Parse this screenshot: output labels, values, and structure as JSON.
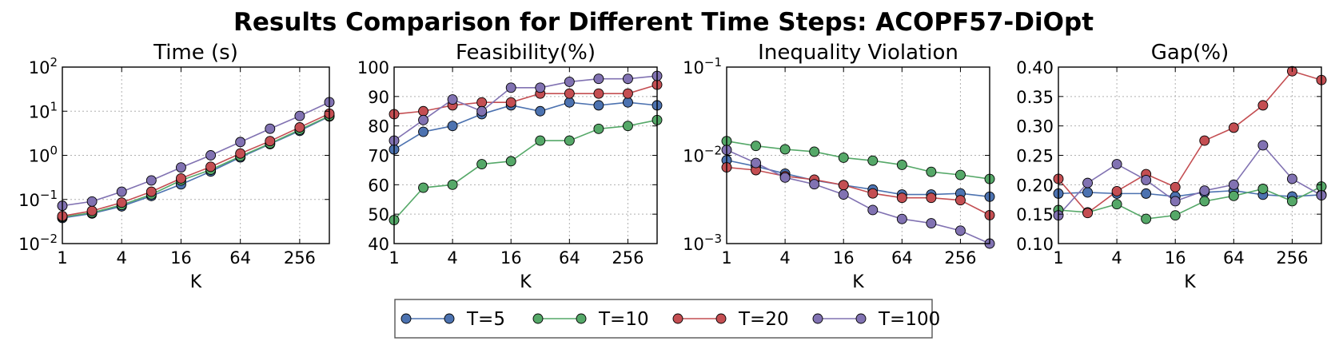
{
  "chart_data": {
    "type": "line",
    "title": "Results Comparison for Different Time Steps: ACOPF57-DiOpt",
    "x": [
      1,
      2,
      4,
      8,
      16,
      32,
      64,
      128,
      256,
      512
    ],
    "xlabel": "K",
    "xticks": [
      1,
      4,
      16,
      64,
      256
    ],
    "xtick_labels": [
      "1",
      "4",
      "16",
      "64",
      "256"
    ],
    "series_names": [
      "T=5",
      "T=10",
      "T=20",
      "T=100"
    ],
    "colors": [
      "#4c72b0",
      "#55a868",
      "#c44e52",
      "#8172b2"
    ],
    "legend_position": "bottom-center",
    "panels": [
      {
        "title": "Time (s)",
        "yscale": "log",
        "ylim": [
          0.01,
          100
        ],
        "yticks": [
          0.01,
          0.1,
          1,
          10,
          100
        ],
        "ytick_labels": [
          {
            "base": "10",
            "exp": "−2"
          },
          {
            "base": "10",
            "exp": "−1"
          },
          {
            "base": "10",
            "exp": "0"
          },
          {
            "base": "10",
            "exp": "1"
          },
          {
            "base": "10",
            "exp": "2"
          }
        ],
        "series": [
          {
            "name": "T=5",
            "values": [
              0.038,
              0.048,
              0.07,
              0.12,
              0.22,
              0.43,
              0.9,
              1.8,
              3.6,
              7.6
            ]
          },
          {
            "name": "T=10",
            "values": [
              0.04,
              0.05,
              0.075,
              0.13,
              0.27,
              0.47,
              0.95,
              1.85,
              3.8,
              7.8
            ]
          },
          {
            "name": "T=20",
            "values": [
              0.042,
              0.055,
              0.085,
              0.15,
              0.3,
              0.55,
              1.1,
              2.1,
              4.3,
              8.8
            ]
          },
          {
            "name": "T=100",
            "values": [
              0.072,
              0.09,
              0.15,
              0.27,
              0.53,
              1.0,
              2.0,
              4.0,
              7.8,
              16
            ]
          }
        ]
      },
      {
        "title": "Feasibility(%)",
        "yscale": "linear",
        "ylim": [
          40,
          100
        ],
        "yticks": [
          40,
          50,
          60,
          70,
          80,
          90,
          100
        ],
        "ytick_labels": [
          "40",
          "50",
          "60",
          "70",
          "80",
          "90",
          "100"
        ],
        "series": [
          {
            "name": "T=5",
            "values": [
              72,
              78,
              80,
              84,
              87,
              85,
              88,
              87,
              88,
              87
            ]
          },
          {
            "name": "T=10",
            "values": [
              48,
              59,
              60,
              67,
              68,
              75,
              75,
              79,
              80,
              82
            ]
          },
          {
            "name": "T=20",
            "values": [
              84,
              85,
              87,
              88,
              88,
              91,
              91,
              91,
              91,
              94
            ]
          },
          {
            "name": "T=100",
            "values": [
              75,
              82,
              89,
              85,
              93,
              93,
              95,
              96,
              96,
              97
            ]
          }
        ]
      },
      {
        "title": "Inequality Violation",
        "yscale": "log",
        "ylim": [
          0.001,
          0.1
        ],
        "yticks": [
          0.001,
          0.01,
          0.1
        ],
        "ytick_labels": [
          {
            "base": "10",
            "exp": "−3"
          },
          {
            "base": "10",
            "exp": "−2"
          },
          {
            "base": "10",
            "exp": "−1"
          }
        ],
        "series": [
          {
            "name": "T=5",
            "values": [
              0.0088,
              0.0075,
              0.0062,
              0.0052,
              0.0046,
              0.0041,
              0.0036,
              0.0036,
              0.0037,
              0.0034
            ]
          },
          {
            "name": "T=10",
            "values": [
              0.0145,
              0.0128,
              0.0117,
              0.011,
              0.0094,
              0.0087,
              0.0078,
              0.0065,
              0.006,
              0.0054
            ]
          },
          {
            "name": "T=20",
            "values": [
              0.0073,
              0.0068,
              0.0058,
              0.0053,
              0.0046,
              0.0037,
              0.0033,
              0.0033,
              0.0031,
              0.0021
            ]
          },
          {
            "name": "T=100",
            "values": [
              0.0115,
              0.0082,
              0.0056,
              0.0047,
              0.0036,
              0.0024,
              0.0019,
              0.0017,
              0.0014,
              0.001
            ]
          }
        ]
      },
      {
        "title": "Gap(%)",
        "yscale": "linear",
        "ylim": [
          0.1,
          0.4
        ],
        "yticks": [
          0.1,
          0.15,
          0.2,
          0.25,
          0.3,
          0.35,
          0.4
        ],
        "ytick_labels": [
          "0.10",
          "0.15",
          "0.20",
          "0.25",
          "0.30",
          "0.35",
          "0.40"
        ],
        "series": [
          {
            "name": "T=5",
            "values": [
              0.185,
              0.187,
              0.185,
              0.185,
              0.18,
              0.187,
              0.19,
              0.183,
              0.18,
              0.183
            ]
          },
          {
            "name": "T=10",
            "values": [
              0.157,
              0.153,
              0.167,
              0.142,
              0.148,
              0.172,
              0.181,
              0.193,
              0.172,
              0.197
            ]
          },
          {
            "name": "T=20",
            "values": [
              0.21,
              0.152,
              0.189,
              0.218,
              0.196,
              0.275,
              0.297,
              0.335,
              0.393,
              0.378
            ]
          },
          {
            "name": "T=100",
            "values": [
              0.148,
              0.203,
              0.235,
              0.208,
              0.172,
              0.19,
              0.2,
              0.267,
              0.21,
              0.182
            ]
          }
        ]
      }
    ]
  }
}
